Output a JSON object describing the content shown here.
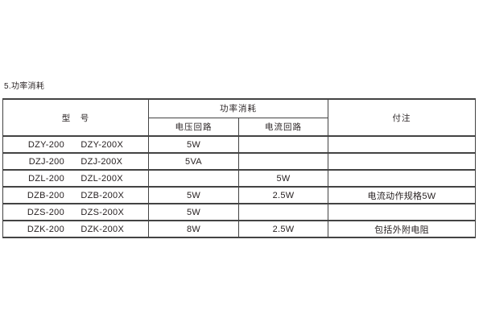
{
  "page": {
    "background_color": "#ffffff",
    "text_color": "#272122",
    "table_border_color": "#434343"
  },
  "section_title": "5.功率消耗",
  "table": {
    "headers": {
      "model": "型　号",
      "power_group": "功率消耗",
      "voltage_circuit": "电压回路",
      "current_circuit": "电流回路",
      "notes": "付注"
    },
    "rows": [
      {
        "model_a": "DZY-200",
        "model_b": "DZY-200X",
        "voltage": "5W",
        "current": "",
        "notes": ""
      },
      {
        "model_a": "DZJ-200",
        "model_b": "DZJ-200X",
        "voltage": "5VA",
        "current": "",
        "notes": ""
      },
      {
        "model_a": "DZL-200",
        "model_b": "DZL-200X",
        "voltage": "",
        "current": "5W",
        "notes": ""
      },
      {
        "model_a": "DZB-200",
        "model_b": "DZB-200X",
        "voltage": "5W",
        "current": "2.5W",
        "notes": "电流动作规格5W"
      },
      {
        "model_a": "DZS-200",
        "model_b": "DZS-200X",
        "voltage": "5W",
        "current": "",
        "notes": ""
      },
      {
        "model_a": "DZK-200",
        "model_b": "DZK-200X",
        "voltage": "8W",
        "current": "2.5W",
        "notes": "包括外附电阻"
      }
    ]
  }
}
